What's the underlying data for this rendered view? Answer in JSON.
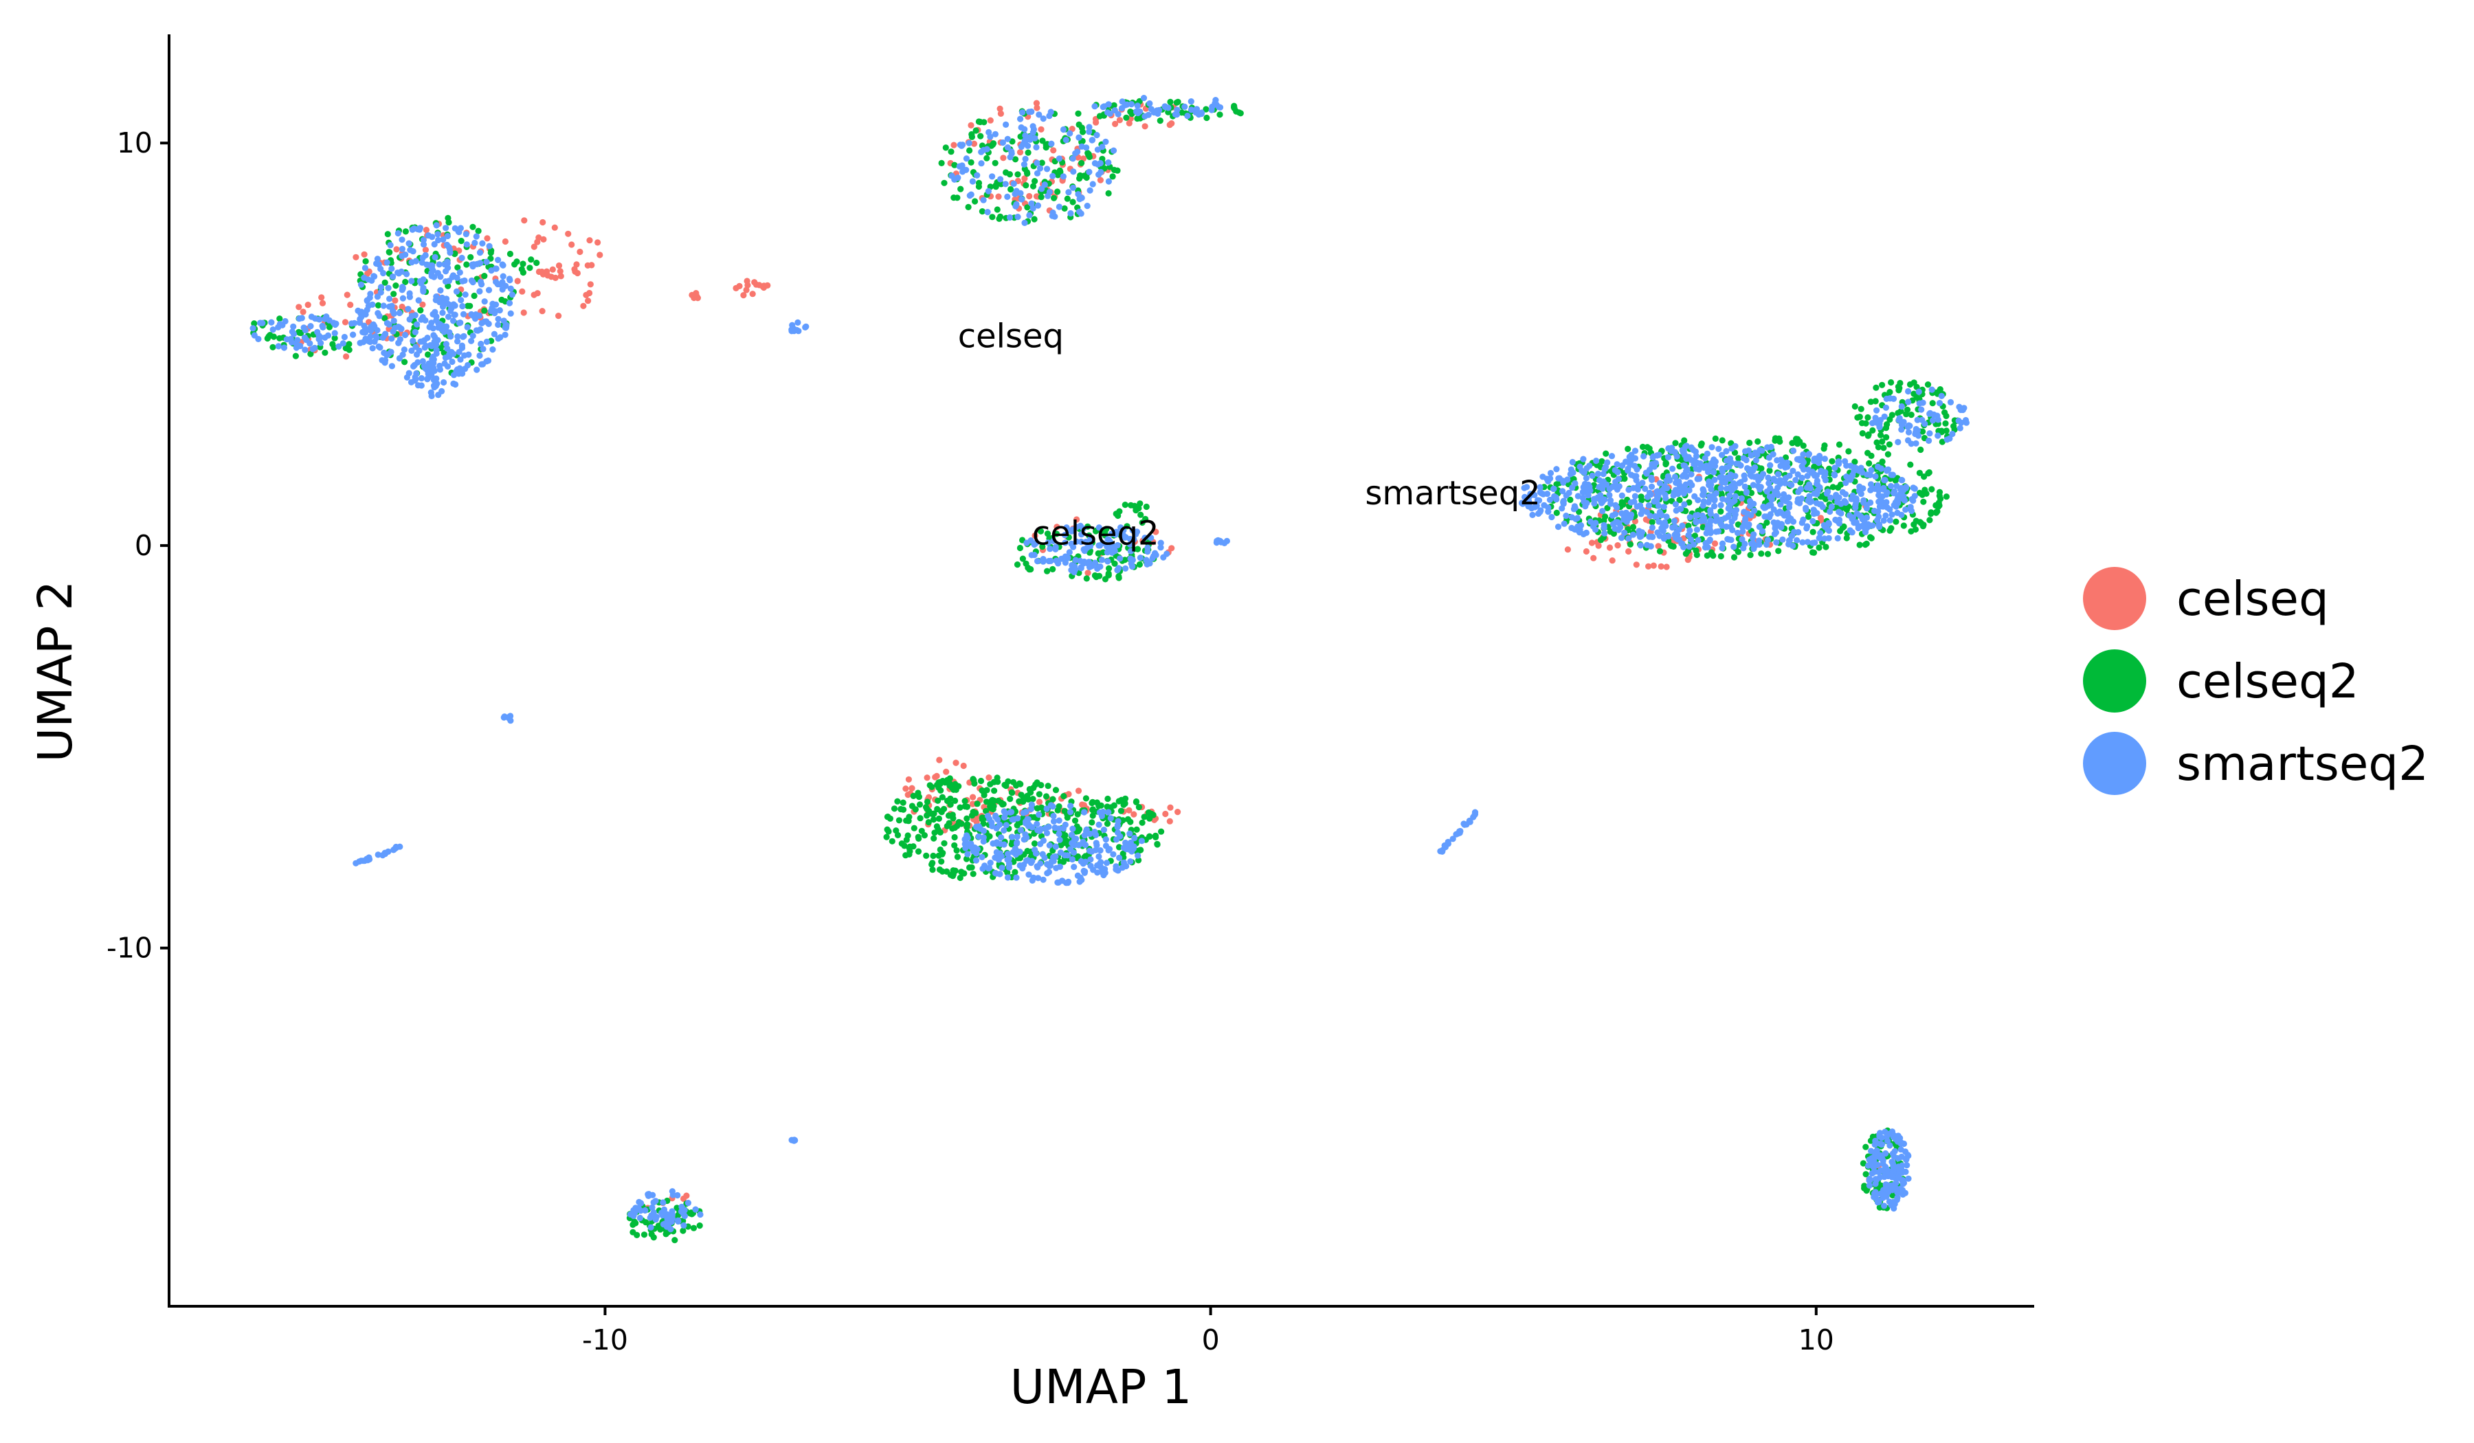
{
  "chart_data": {
    "type": "scatter",
    "title": "",
    "xlabel": "UMAP 1",
    "ylabel": "UMAP 2",
    "xlim": [
      -17.2,
      13.6
    ],
    "ylim": [
      -18.9,
      12.7
    ],
    "xticks": [
      -10,
      0,
      10
    ],
    "yticks": [
      10,
      0,
      -10
    ],
    "xtick_labels": [
      "-10",
      "0",
      "10"
    ],
    "ytick_labels": [
      "10",
      "0",
      "-10"
    ],
    "grid": false,
    "legend": {
      "position": "right",
      "entries": [
        {
          "name": "celseq",
          "color": "#F8766D"
        },
        {
          "name": "celseq2",
          "color": "#00BA38"
        },
        {
          "name": "smartseq2",
          "color": "#619CFF"
        }
      ]
    },
    "annotations": [
      {
        "text": "celseq",
        "x": -3.3,
        "y": 5.2
      },
      {
        "text": "celseq2",
        "x": -1.9,
        "y": 0.3
      },
      {
        "text": "smartseq2",
        "x": 4.0,
        "y": 1.3
      }
    ],
    "series": [
      {
        "name": "celseq",
        "color": "#F8766D",
        "clusters": [
          {
            "cx": -12.0,
            "cy": 6.8,
            "rx": 2.2,
            "ry": 1.4,
            "n": 70
          },
          {
            "cx": -14.0,
            "cy": 5.5,
            "rx": 1.2,
            "ry": 1.0,
            "n": 30
          },
          {
            "cx": -10.8,
            "cy": 6.75,
            "rx": 0.4,
            "ry": 0.12,
            "n": 10
          },
          {
            "cx": -8.6,
            "cy": 6.2,
            "rx": 0.25,
            "ry": 0.1,
            "n": 6
          },
          {
            "cx": -7.6,
            "cy": 6.4,
            "rx": 0.45,
            "ry": 0.2,
            "n": 14
          },
          {
            "cx": -2.9,
            "cy": 9.6,
            "rx": 1.4,
            "ry": 1.4,
            "n": 60
          },
          {
            "cx": -1.2,
            "cy": 10.7,
            "rx": 1.1,
            "ry": 0.3,
            "n": 14
          },
          {
            "cx": -1.8,
            "cy": 0.0,
            "rx": 1.2,
            "ry": 0.7,
            "n": 15
          },
          {
            "cx": 7.0,
            "cy": 0.2,
            "rx": 1.2,
            "ry": 0.9,
            "n": 45
          },
          {
            "cx": 9.0,
            "cy": 1.0,
            "rx": 2.0,
            "ry": 1.3,
            "n": 30
          },
          {
            "cx": -4.3,
            "cy": -6.2,
            "rx": 0.8,
            "ry": 0.9,
            "n": 45
          },
          {
            "cx": -2.8,
            "cy": -6.4,
            "rx": 1.0,
            "ry": 0.4,
            "n": 25
          },
          {
            "cx": -1.0,
            "cy": -6.7,
            "rx": 0.5,
            "ry": 0.3,
            "n": 12
          },
          {
            "cx": -9.0,
            "cy": -16.3,
            "rx": 0.4,
            "ry": 0.3,
            "n": 5
          },
          {
            "cx": 11.2,
            "cy": -15.5,
            "rx": 0.4,
            "ry": 0.5,
            "n": 4
          }
        ]
      },
      {
        "name": "celseq2",
        "color": "#00BA38",
        "clusters": [
          {
            "cx": -12.8,
            "cy": 6.2,
            "rx": 1.3,
            "ry": 2.0,
            "n": 110
          },
          {
            "cx": -15.0,
            "cy": 5.2,
            "rx": 1.1,
            "ry": 0.5,
            "n": 40
          },
          {
            "cx": -11.7,
            "cy": 7.0,
            "rx": 0.6,
            "ry": 0.4,
            "n": 14
          },
          {
            "cx": -3.0,
            "cy": 9.4,
            "rx": 1.5,
            "ry": 1.4,
            "n": 140
          },
          {
            "cx": -0.8,
            "cy": 10.8,
            "rx": 1.5,
            "ry": 0.25,
            "n": 50
          },
          {
            "cx": -2.1,
            "cy": -0.2,
            "rx": 1.2,
            "ry": 0.7,
            "n": 90
          },
          {
            "cx": -1.3,
            "cy": 0.8,
            "rx": 0.3,
            "ry": 0.4,
            "n": 14
          },
          {
            "cx": 8.8,
            "cy": 1.2,
            "rx": 3.4,
            "ry": 1.5,
            "n": 520
          },
          {
            "cx": 11.5,
            "cy": 3.2,
            "rx": 0.9,
            "ry": 0.9,
            "n": 90
          },
          {
            "cx": -3.7,
            "cy": -7.0,
            "rx": 1.7,
            "ry": 1.3,
            "n": 330
          },
          {
            "cx": -1.7,
            "cy": -7.1,
            "rx": 0.9,
            "ry": 0.9,
            "n": 120
          },
          {
            "cx": -9.0,
            "cy": -16.8,
            "rx": 0.65,
            "ry": 0.55,
            "n": 60
          },
          {
            "cx": 11.1,
            "cy": -15.5,
            "rx": 0.35,
            "ry": 1.0,
            "n": 80
          }
        ]
      },
      {
        "name": "smartseq2",
        "color": "#619CFF",
        "clusters": [
          {
            "cx": -12.8,
            "cy": 6.0,
            "rx": 1.3,
            "ry": 2.0,
            "n": 360
          },
          {
            "cx": -14.8,
            "cy": 5.3,
            "rx": 1.1,
            "ry": 0.45,
            "n": 70
          },
          {
            "cx": -12.8,
            "cy": 4.2,
            "rx": 0.5,
            "ry": 0.5,
            "n": 35
          },
          {
            "cx": -6.8,
            "cy": 5.4,
            "rx": 0.15,
            "ry": 0.15,
            "n": 10
          },
          {
            "cx": -2.9,
            "cy": 9.4,
            "rx": 1.4,
            "ry": 1.4,
            "n": 130
          },
          {
            "cx": -0.8,
            "cy": 10.9,
            "rx": 1.2,
            "ry": 0.25,
            "n": 50
          },
          {
            "cx": -1.9,
            "cy": -0.1,
            "rx": 1.2,
            "ry": 0.6,
            "n": 120
          },
          {
            "cx": 0.2,
            "cy": 0.1,
            "rx": 0.15,
            "ry": 0.05,
            "n": 8
          },
          {
            "cx": 8.4,
            "cy": 1.2,
            "rx": 3.3,
            "ry": 1.3,
            "n": 900
          },
          {
            "cx": 11.7,
            "cy": 3.2,
            "rx": 0.8,
            "ry": 0.7,
            "n": 70
          },
          {
            "cx": -2.6,
            "cy": -7.4,
            "rx": 1.5,
            "ry": 1.0,
            "n": 260
          },
          {
            "cx": -11.6,
            "cy": -4.3,
            "rx": 0.08,
            "ry": 0.08,
            "n": 6
          },
          {
            "cx": -9.0,
            "cy": -16.5,
            "rx": 0.6,
            "ry": 0.5,
            "n": 55
          },
          {
            "cx": -6.9,
            "cy": -14.8,
            "rx": 0.08,
            "ry": 0.05,
            "n": 5
          },
          {
            "cx": 11.2,
            "cy": -15.5,
            "rx": 0.35,
            "ry": 1.0,
            "n": 160
          }
        ]
      },
      {
        "name": "",
        "color": "#619CFF",
        "streaks": [
          {
            "x1": -14.2,
            "y1": -7.95,
            "x2": -13.4,
            "y2": -7.5,
            "n": 22
          },
          {
            "x1": 3.8,
            "y1": -7.6,
            "x2": 4.4,
            "y2": -6.6,
            "n": 22
          }
        ]
      }
    ]
  }
}
